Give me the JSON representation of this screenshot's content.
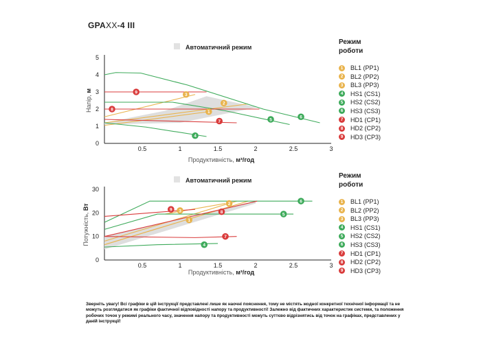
{
  "product_title_main": "GPA",
  "product_title_xx": "XX",
  "product_title_suffix": "-4 III",
  "mode_colors": [
    "#e9b34c",
    "#e9b34c",
    "#e9b34c",
    "#3daa5a",
    "#3daa5a",
    "#3daa5a",
    "#d93b3b",
    "#d93b3b",
    "#d93b3b"
  ],
  "legend": {
    "title_line1": "Режим",
    "title_line2": "роботи",
    "items": [
      {
        "num": "1",
        "label": "BL1 (PP1)"
      },
      {
        "num": "2",
        "label": "BL2 (PP2)"
      },
      {
        "num": "3",
        "label": "BL3 (PP3)"
      },
      {
        "num": "4",
        "label": "HS1 (CS1)"
      },
      {
        "num": "5",
        "label": "HS2 (CS2)"
      },
      {
        "num": "6",
        "label": "HS3 (CS3)"
      },
      {
        "num": "7",
        "label": "HD1 (CP1)"
      },
      {
        "num": "8",
        "label": "HD2 (CP2)"
      },
      {
        "num": "9",
        "label": "HD3 (CP3)"
      }
    ]
  },
  "chart_data": [
    {
      "type": "line",
      "auto_mode_label": "Автоматичний режим",
      "xlabel_text": "Продуктивність, ",
      "xlabel_unit": "м³/год",
      "ylabel_text": "Напір, ",
      "ylabel_unit": "м",
      "xlim": [
        0,
        3
      ],
      "ylim": [
        0,
        5
      ],
      "x_ticks": [
        {
          "v": 0.5,
          "t": "0.5"
        },
        {
          "v": 1,
          "t": "1"
        },
        {
          "v": 1.5,
          "t": "1.5"
        },
        {
          "v": 2,
          "t": "2"
        },
        {
          "v": 2.5,
          "t": "2.5"
        },
        {
          "v": 3,
          "t": "3"
        }
      ],
      "y_ticks": [
        {
          "v": 0,
          "t": "0"
        },
        {
          "v": 1,
          "t": "1"
        },
        {
          "v": 2,
          "t": "2"
        },
        {
          "v": 3,
          "t": "3"
        },
        {
          "v": 4,
          "t": "4"
        },
        {
          "v": 5,
          "t": "5"
        }
      ],
      "auto_region": [
        [
          0,
          1.2
        ],
        [
          0.8,
          1.9
        ],
        [
          1.35,
          2.75
        ],
        [
          2.02,
          2.1
        ],
        [
          1.0,
          1.2
        ],
        [
          0,
          1.1
        ]
      ],
      "series": [
        {
          "num": "1",
          "points": [
            [
              0,
              1.05
            ],
            [
              1.38,
              1.85
            ]
          ],
          "marker": [
            1.38,
            1.85
          ]
        },
        {
          "num": "2",
          "points": [
            [
              0,
              1.2
            ],
            [
              1.9,
              2.3
            ]
          ],
          "marker": [
            1.58,
            2.35
          ]
        },
        {
          "num": "3",
          "points": [
            [
              0,
              1.55
            ],
            [
              1.2,
              2.85
            ]
          ],
          "marker": [
            1.08,
            2.85
          ]
        },
        {
          "num": "4",
          "points": [
            [
              0,
              1.2
            ],
            [
              0.55,
              0.95
            ],
            [
              1.35,
              0.4
            ]
          ],
          "marker": [
            1.2,
            0.45
          ]
        },
        {
          "num": "5",
          "points": [
            [
              0,
              2.4
            ],
            [
              0.9,
              2.4
            ],
            [
              1.6,
              1.9
            ],
            [
              2.45,
              1.1
            ]
          ],
          "marker": [
            2.2,
            1.4
          ]
        },
        {
          "num": "6",
          "points": [
            [
              0,
              4.0
            ],
            [
              0.15,
              4.13
            ],
            [
              0.48,
              4.1
            ],
            [
              1.1,
              3.4
            ],
            [
              2.1,
              2.0
            ],
            [
              2.85,
              1.2
            ]
          ],
          "marker": [
            2.6,
            1.55
          ]
        },
        {
          "num": "7",
          "points": [
            [
              0,
              1.4
            ],
            [
              1.75,
              1.2
            ]
          ],
          "marker": [
            1.52,
            1.3
          ]
        },
        {
          "num": "8",
          "points": [
            [
              0,
              2.0
            ],
            [
              2.05,
              2.0
            ]
          ],
          "marker": [
            0.1,
            2.0
          ]
        },
        {
          "num": "9",
          "points": [
            [
              0,
              3.0
            ],
            [
              1.35,
              3.0
            ]
          ],
          "marker": [
            0.42,
            3.0
          ]
        }
      ]
    },
    {
      "type": "line",
      "auto_mode_label": "Автоматичний режим",
      "xlabel_text": "Продуктивність, ",
      "xlabel_unit": "м³/год",
      "ylabel_text": "Потужність, ",
      "ylabel_unit": "Вт",
      "xlim": [
        0,
        3
      ],
      "ylim": [
        0,
        30
      ],
      "x_ticks": [
        {
          "v": 0.5,
          "t": "0.5"
        },
        {
          "v": 1,
          "t": "1"
        },
        {
          "v": 1.5,
          "t": "1.5"
        },
        {
          "v": 2,
          "t": "2"
        },
        {
          "v": 2.5,
          "t": "2.5"
        },
        {
          "v": 3,
          "t": "3"
        }
      ],
      "y_ticks": [
        {
          "v": 0,
          "t": "0"
        },
        {
          "v": 10,
          "t": "10"
        },
        {
          "v": 20,
          "t": "20"
        },
        {
          "v": 30,
          "t": "30"
        }
      ],
      "auto_region": [
        [
          0,
          10
        ],
        [
          2.0,
          25
        ],
        [
          2.0,
          24
        ],
        [
          0,
          4.5
        ]
      ],
      "series": [
        {
          "num": "1",
          "points": [
            [
              0,
              6.5
            ],
            [
              1.9,
              25
            ]
          ],
          "marker": [
            1.12,
            17
          ]
        },
        {
          "num": "2",
          "points": [
            [
              0,
              8
            ],
            [
              1.75,
              25
            ]
          ],
          "marker": [
            1.65,
            24
          ]
        },
        {
          "num": "3",
          "points": [
            [
              0.8,
              19.5
            ],
            [
              1.6,
              24
            ]
          ],
          "marker": [
            1.0,
            21
          ]
        },
        {
          "num": "4",
          "points": [
            [
              0,
              5.5
            ],
            [
              0.7,
              6.5
            ],
            [
              1.5,
              7
            ]
          ],
          "marker": [
            1.32,
            6.5
          ]
        },
        {
          "num": "5",
          "points": [
            [
              0,
              13
            ],
            [
              0.7,
              19.5
            ],
            [
              2.5,
              19.5
            ]
          ],
          "marker": [
            2.37,
            19.5
          ]
        },
        {
          "num": "6",
          "points": [
            [
              0,
              16
            ],
            [
              0.6,
              25
            ],
            [
              2.75,
              25
            ]
          ],
          "marker": [
            2.6,
            25
          ]
        },
        {
          "num": "7",
          "points": [
            [
              0,
              10
            ],
            [
              1.2,
              9.5
            ],
            [
              1.75,
              10
            ]
          ],
          "marker": [
            1.6,
            10
          ]
        },
        {
          "num": "8",
          "points": [
            [
              0,
              10
            ],
            [
              2.02,
              25
            ]
          ],
          "marker": [
            1.55,
            20.5
          ]
        },
        {
          "num": "9",
          "points": [
            [
              0,
              18.5
            ],
            [
              1.2,
              21.5
            ]
          ],
          "marker": [
            0.88,
            21.5
          ]
        }
      ]
    }
  ],
  "disclaimer": "Зверніть увагу! Всі графіки в цій інструкції представлені лише як наочні пояснення, тому не містять жодної конкретної технічної інформації та не можуть розглядатися як графіки фактичної відповідності напору та продуктивності! Залежно від фактичних характеристик системи, та положення робочих точок у режимі реального часу, значення напору та продуктивності можуть суттєво відрізнятись від точок на графіках, представлених у даній інструкції!"
}
